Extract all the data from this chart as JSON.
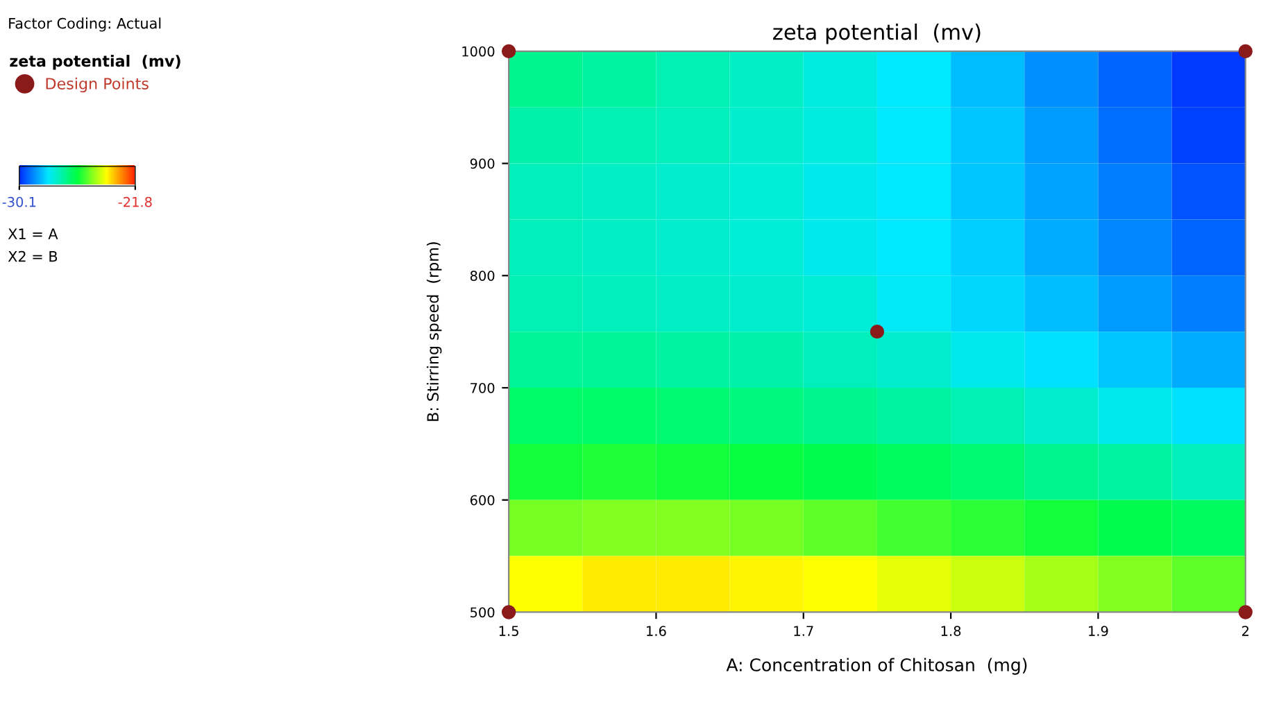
{
  "chart_data": {
    "type": "heatmap",
    "title": "zeta potential  (mv)",
    "xlabel": "A: Concentration of Chitosan  (mg)",
    "ylabel": "B: Stirring speed  (rpm)",
    "legend_title": "zeta potential  (mv)",
    "x": [
      1.525,
      1.575,
      1.625,
      1.675,
      1.725,
      1.775,
      1.825,
      1.875,
      1.925,
      1.975
    ],
    "cells": [
      [
        -26.8,
        -27.0,
        -27.2,
        -27.4,
        -27.7,
        -28.0,
        -28.5,
        -29.0,
        -29.5,
        -30.0
      ],
      [
        -27.1,
        -27.2,
        -27.3,
        -27.5,
        -27.7,
        -28.0,
        -28.4,
        -28.9,
        -29.4,
        -29.9
      ],
      [
        -27.3,
        -27.4,
        -27.5,
        -27.6,
        -27.8,
        -28.0,
        -28.4,
        -28.8,
        -29.2,
        -29.7
      ],
      [
        -27.3,
        -27.4,
        -27.5,
        -27.6,
        -27.8,
        -28.0,
        -28.3,
        -28.7,
        -29.1,
        -29.5
      ],
      [
        -27.2,
        -27.3,
        -27.4,
        -27.5,
        -27.6,
        -27.9,
        -28.2,
        -28.5,
        -28.9,
        -29.2
      ],
      [
        -26.9,
        -26.9,
        -27.0,
        -27.1,
        -27.3,
        -27.5,
        -27.8,
        -28.1,
        -28.4,
        -28.7
      ],
      [
        -26.4,
        -26.4,
        -26.5,
        -26.6,
        -26.8,
        -27.0,
        -27.2,
        -27.5,
        -27.8,
        -28.1
      ],
      [
        -25.8,
        -25.7,
        -25.8,
        -25.9,
        -26.1,
        -26.3,
        -26.5,
        -26.8,
        -27.0,
        -27.3
      ],
      [
        -25.0,
        -24.9,
        -24.9,
        -25.0,
        -25.2,
        -25.4,
        -25.6,
        -25.8,
        -26.1,
        -26.3
      ],
      [
        -23.9,
        -23.7,
        -23.7,
        -23.8,
        -23.9,
        -24.1,
        -24.3,
        -24.6,
        -24.9,
        -25.2
      ]
    ],
    "clim": [
      -30.1,
      -21.8
    ],
    "cticks": [
      -30.1,
      -21.8
    ],
    "xlim": [
      1.5,
      2
    ],
    "xticks": [
      1.5,
      1.6,
      1.7,
      1.8,
      1.9,
      2
    ],
    "ylim": [
      500,
      1000
    ],
    "yticks": [
      500,
      600,
      700,
      800,
      900,
      1000
    ],
    "series": [
      {
        "name": "Design Points",
        "type": "scatter",
        "color": "#8b1a1a",
        "x": [
          1.5,
          1.5,
          2,
          2,
          1.75
        ],
        "values": [
          500,
          1000,
          500,
          1000,
          750
        ]
      }
    ],
    "legend": "left",
    "grid": false,
    "marker": "circle",
    "annotations": [
      "Factor Coding: Actual",
      "X1 = A",
      "X2 = B"
    ]
  }
}
